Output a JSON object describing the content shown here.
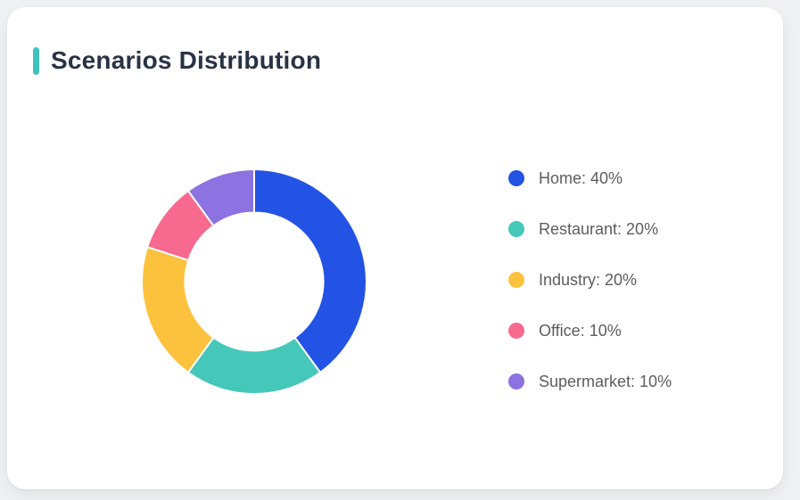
{
  "card": {
    "title": "Scenarios Distribution"
  },
  "chart_data": {
    "type": "pie",
    "title": "Scenarios Distribution",
    "donut": true,
    "start_angle_deg": 0,
    "direction": "clockwise",
    "outer_radius_px": 126,
    "inner_radius_px": 77.5,
    "legend_position": "right",
    "series": [
      {
        "label": "Home",
        "value": 40,
        "color": "#2353E5"
      },
      {
        "label": "Restaurant",
        "value": 20,
        "color": "#45C7BA"
      },
      {
        "label": "Industry",
        "value": 20,
        "color": "#FDC23D"
      },
      {
        "label": "Office",
        "value": 10,
        "color": "#F8698F"
      },
      {
        "label": "Supermarket",
        "value": 10,
        "color": "#8D72E1"
      }
    ],
    "legend_labels": [
      "Home: 40%",
      "Restaurant: 20%",
      "Industry: 20%",
      "Office: 10%",
      "Supermarket: 10%"
    ]
  },
  "colors": {
    "page_bg": "#F0F1F3",
    "card_bg": "#FFFFFF",
    "accent": "#3EC4BE",
    "title_text": "#2A3245",
    "legend_text": "#5C5D60",
    "segment_gap": "#FFFFFF"
  }
}
